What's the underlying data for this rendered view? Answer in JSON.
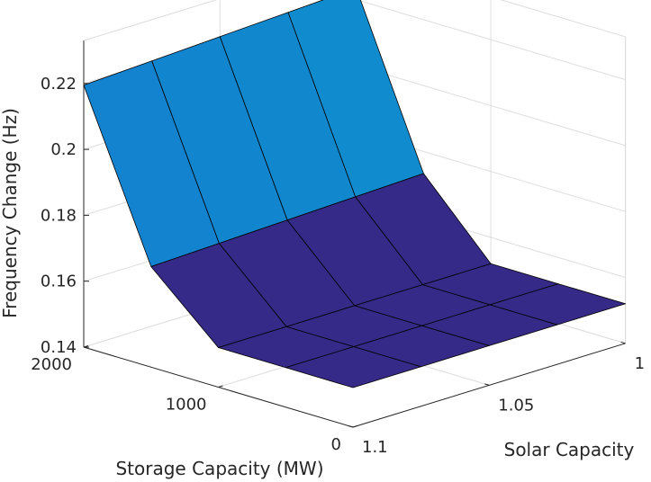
{
  "chart_data": {
    "type": "surface3d",
    "xlabel": "Solar Capacity",
    "ylabel": "Storage Capacity (MW)",
    "zlabel": "Frequency Change (Hz)",
    "x": [
      1.1,
      1.075,
      1.05,
      1.025,
      1.0
    ],
    "y": [
      0,
      500,
      1000,
      1500,
      2000
    ],
    "z": [
      [
        0.152,
        0.152,
        0.152,
        0.152,
        0.152
      ],
      [
        0.152,
        0.152,
        0.152,
        0.152,
        0.152
      ],
      [
        0.152,
        0.152,
        0.152,
        0.152,
        0.152
      ],
      [
        0.1705,
        0.1712,
        0.1719,
        0.1726,
        0.1733
      ],
      [
        0.2195,
        0.2205,
        0.2215,
        0.2225,
        0.2235
      ]
    ],
    "xlim": [
      1.0,
      1.1
    ],
    "ylim": [
      0,
      2000
    ],
    "zlim": [
      0.14,
      0.22
    ],
    "x_ticks": [
      "1",
      "1.05",
      "1.1"
    ],
    "y_ticks": [
      "0",
      "1000",
      "2000"
    ],
    "z_ticks": [
      "0.14",
      "0.16",
      "0.18",
      "0.2",
      "0.22"
    ],
    "colormap": "parula",
    "grid": true
  }
}
